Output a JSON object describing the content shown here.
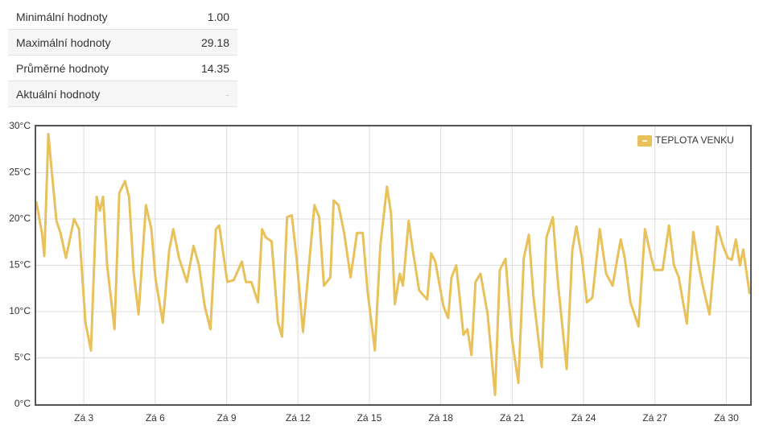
{
  "table": {
    "rows": [
      [
        "Minimální hodnoty",
        "1.00"
      ],
      [
        "Maximální hodnoty",
        "29.18"
      ],
      [
        "Průměrné hodnoty",
        "14.35"
      ],
      [
        "Aktuální hodnoty",
        "-"
      ]
    ]
  },
  "chart_data": {
    "type": "line",
    "x": [
      1.0,
      1.24,
      1.34,
      1.51,
      1.64,
      1.85,
      2.02,
      2.25,
      2.59,
      2.8,
      3.07,
      3.3,
      3.54,
      3.68,
      3.81,
      3.98,
      4.29,
      4.49,
      4.73,
      4.9,
      5.1,
      5.3,
      5.61,
      5.84,
      6.01,
      6.32,
      6.59,
      6.76,
      7.0,
      7.33,
      7.61,
      7.84,
      8.08,
      8.32,
      8.55,
      8.69,
      9.03,
      9.3,
      9.64,
      9.81,
      10.04,
      10.32,
      10.49,
      10.65,
      10.89,
      11.16,
      11.33,
      11.54,
      11.74,
      11.94,
      12.21,
      12.69,
      12.89,
      13.09,
      13.36,
      13.5,
      13.7,
      13.94,
      14.21,
      14.48,
      14.72,
      14.92,
      15.23,
      15.46,
      15.74,
      15.91,
      16.07,
      16.28,
      16.41,
      16.65,
      16.82,
      17.09,
      17.43,
      17.6,
      17.77,
      18.11,
      18.31,
      18.45,
      18.65,
      18.78,
      18.95,
      19.12,
      19.29,
      19.46,
      19.67,
      19.97,
      20.28,
      20.48,
      20.72,
      20.99,
      21.26,
      21.49,
      21.7,
      21.9,
      22.24,
      22.44,
      22.71,
      22.92,
      23.29,
      23.53,
      23.7,
      23.93,
      24.14,
      24.37,
      24.68,
      24.95,
      25.22,
      25.56,
      25.73,
      25.97,
      26.31,
      26.58,
      26.85,
      26.98,
      27.32,
      27.59,
      27.8,
      28.0,
      28.34,
      28.61,
      28.81,
      29.01,
      29.29,
      29.62,
      29.86,
      30.06,
      30.23,
      30.4,
      30.57,
      30.71,
      30.98
    ],
    "series": [
      {
        "name": "TEPLOTA VENKU",
        "color": "#e8c15a",
        "values": [
          21.9,
          18.5,
          16.0,
          29.18,
          25.5,
          19.8,
          18.5,
          15.8,
          20.0,
          18.9,
          8.8,
          5.8,
          22.4,
          20.9,
          22.4,
          15.0,
          8.1,
          22.8,
          24.1,
          22.4,
          14.1,
          9.7,
          21.5,
          18.9,
          13.6,
          8.8,
          16.7,
          18.9,
          15.8,
          13.2,
          17.1,
          15.0,
          10.6,
          8.1,
          18.9,
          19.3,
          13.2,
          13.4,
          15.4,
          13.2,
          13.2,
          11.0,
          18.9,
          18.0,
          17.6,
          8.8,
          7.3,
          20.2,
          20.4,
          15.8,
          7.8,
          21.5,
          20.2,
          12.8,
          13.7,
          22.0,
          21.5,
          18.5,
          13.7,
          18.5,
          18.5,
          12.3,
          5.8,
          17.1,
          23.5,
          20.6,
          10.8,
          14.1,
          12.8,
          19.8,
          16.7,
          12.3,
          11.3,
          16.3,
          15.4,
          10.6,
          9.3,
          13.7,
          15.0,
          11.9,
          7.5,
          8.1,
          5.3,
          13.2,
          14.1,
          9.7,
          1.0,
          14.5,
          15.7,
          7.1,
          2.3,
          15.8,
          18.3,
          11.5,
          4.0,
          18.0,
          20.2,
          13.2,
          3.8,
          16.7,
          19.2,
          15.8,
          11.0,
          11.5,
          18.9,
          14.1,
          12.8,
          17.8,
          15.8,
          11.0,
          8.4,
          18.9,
          15.8,
          14.5,
          14.5,
          19.3,
          15.0,
          13.7,
          8.7,
          18.6,
          15.4,
          12.8,
          9.7,
          19.2,
          17.1,
          15.8,
          15.6,
          17.8,
          15.0,
          16.7,
          11.9
        ]
      }
    ],
    "xlim": [
      1,
      31
    ],
    "xticks": [
      {
        "value": 3,
        "label": "Zá 3"
      },
      {
        "value": 6,
        "label": "Zá 6"
      },
      {
        "value": 9,
        "label": "Zá 9"
      },
      {
        "value": 12,
        "label": "Zá 12"
      },
      {
        "value": 15,
        "label": "Zá 15"
      },
      {
        "value": 18,
        "label": "Zá 18"
      },
      {
        "value": 21,
        "label": "Zá 21"
      },
      {
        "value": 24,
        "label": "Zá 24"
      },
      {
        "value": 27,
        "label": "Zá 27"
      },
      {
        "value": 30,
        "label": "Zá 30"
      }
    ],
    "ylim": [
      0,
      30
    ],
    "yticks": [
      {
        "value": 0,
        "label": "0°C"
      },
      {
        "value": 5,
        "label": "5°C"
      },
      {
        "value": 10,
        "label": "10°C"
      },
      {
        "value": 15,
        "label": "15°C"
      },
      {
        "value": 20,
        "label": "20°C"
      },
      {
        "value": 25,
        "label": "25°C"
      },
      {
        "value": 30,
        "label": "30°C"
      }
    ],
    "grid": true,
    "legend": "top-right"
  }
}
